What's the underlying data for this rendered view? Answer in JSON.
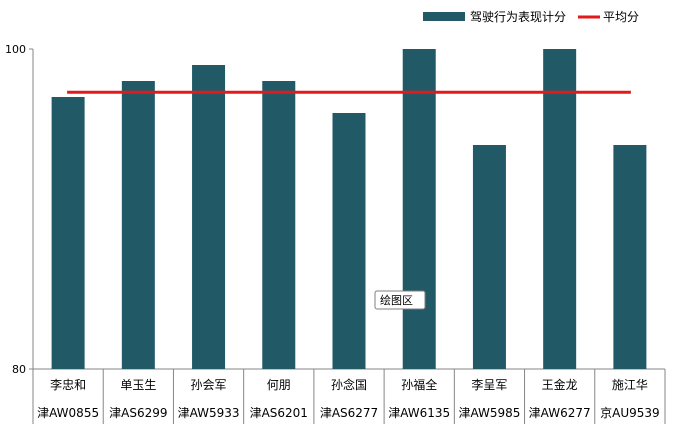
{
  "chart_data": {
    "type": "bar",
    "categories": [
      "李忠和",
      "单玉生",
      "孙会军",
      "何朋",
      "孙念国",
      "孙福全",
      "李呈军",
      "王金龙",
      "施江华"
    ],
    "sub_labels": [
      "津AW0855",
      "津AS6299",
      "津AW5933",
      "津AS6201",
      "津AS6277",
      "津AW6135",
      "津AW5985",
      "津AW6277",
      "京AU9539"
    ],
    "series": [
      {
        "name": "驾驶行为表现计分",
        "values": [
          97,
          98,
          99,
          98,
          96,
          100,
          94,
          100,
          94
        ],
        "color": "#215967"
      }
    ],
    "average": {
      "name": "平均分",
      "value": 97.3,
      "color": "#e31a1c"
    },
    "ylim": [
      80,
      100
    ],
    "yticks": [
      80,
      100
    ],
    "grid": false,
    "legend_position": "top-right",
    "tooltip": "绘图区"
  }
}
